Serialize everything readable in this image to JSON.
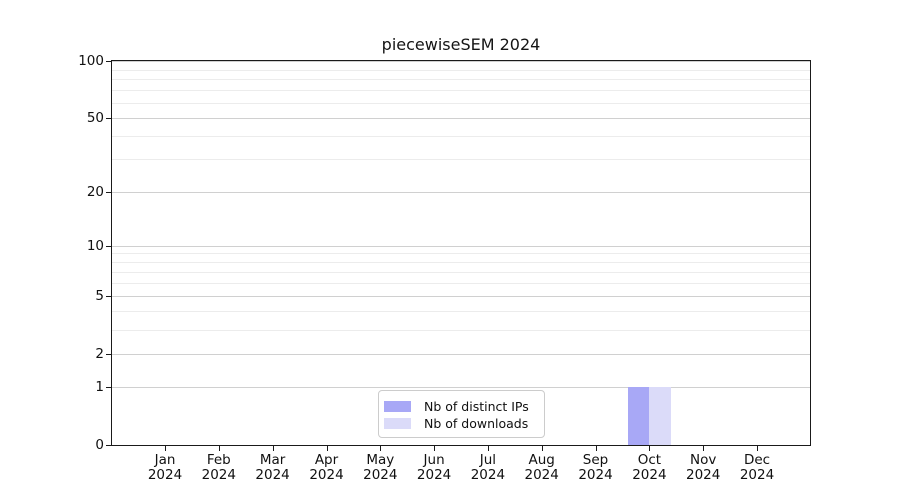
{
  "chart_data": {
    "type": "bar",
    "title": "piecewiseSEM 2024",
    "x_months": [
      "Jan",
      "Feb",
      "Mar",
      "Apr",
      "May",
      "Jun",
      "Jul",
      "Aug",
      "Sep",
      "Oct",
      "Nov",
      "Dec"
    ],
    "x_years": [
      "2024",
      "2024",
      "2024",
      "2024",
      "2024",
      "2024",
      "2024",
      "2024",
      "2024",
      "2024",
      "2024",
      "2024"
    ],
    "series": [
      {
        "name": "Nb of distinct IPs",
        "color": "#a8a8f6",
        "values": [
          0,
          0,
          0,
          0,
          0,
          0,
          0,
          0,
          0,
          1,
          0,
          0
        ]
      },
      {
        "name": "Nb of downloads",
        "color": "#dbdbf9",
        "values": [
          0,
          0,
          0,
          0,
          0,
          0,
          0,
          0,
          0,
          1,
          0,
          0
        ]
      }
    ],
    "yscale": "log1p",
    "ylim": [
      0,
      100
    ],
    "y_tick_values": [
      0,
      1,
      2,
      5,
      10,
      20,
      50,
      100
    ],
    "y_tick_labels": [
      "0",
      "1",
      "2",
      "5",
      "10",
      "20",
      "50",
      "100"
    ],
    "y_minor_gridlines": [
      3,
      4,
      6,
      7,
      8,
      9,
      30,
      40,
      60,
      70,
      80,
      90
    ],
    "grid": true,
    "legend_position": "lower center",
    "colors": {
      "major_grid": "#d0d0d0",
      "minor_grid": "#ececec",
      "spine": "#1a1a1a",
      "background": "#ffffff"
    }
  }
}
